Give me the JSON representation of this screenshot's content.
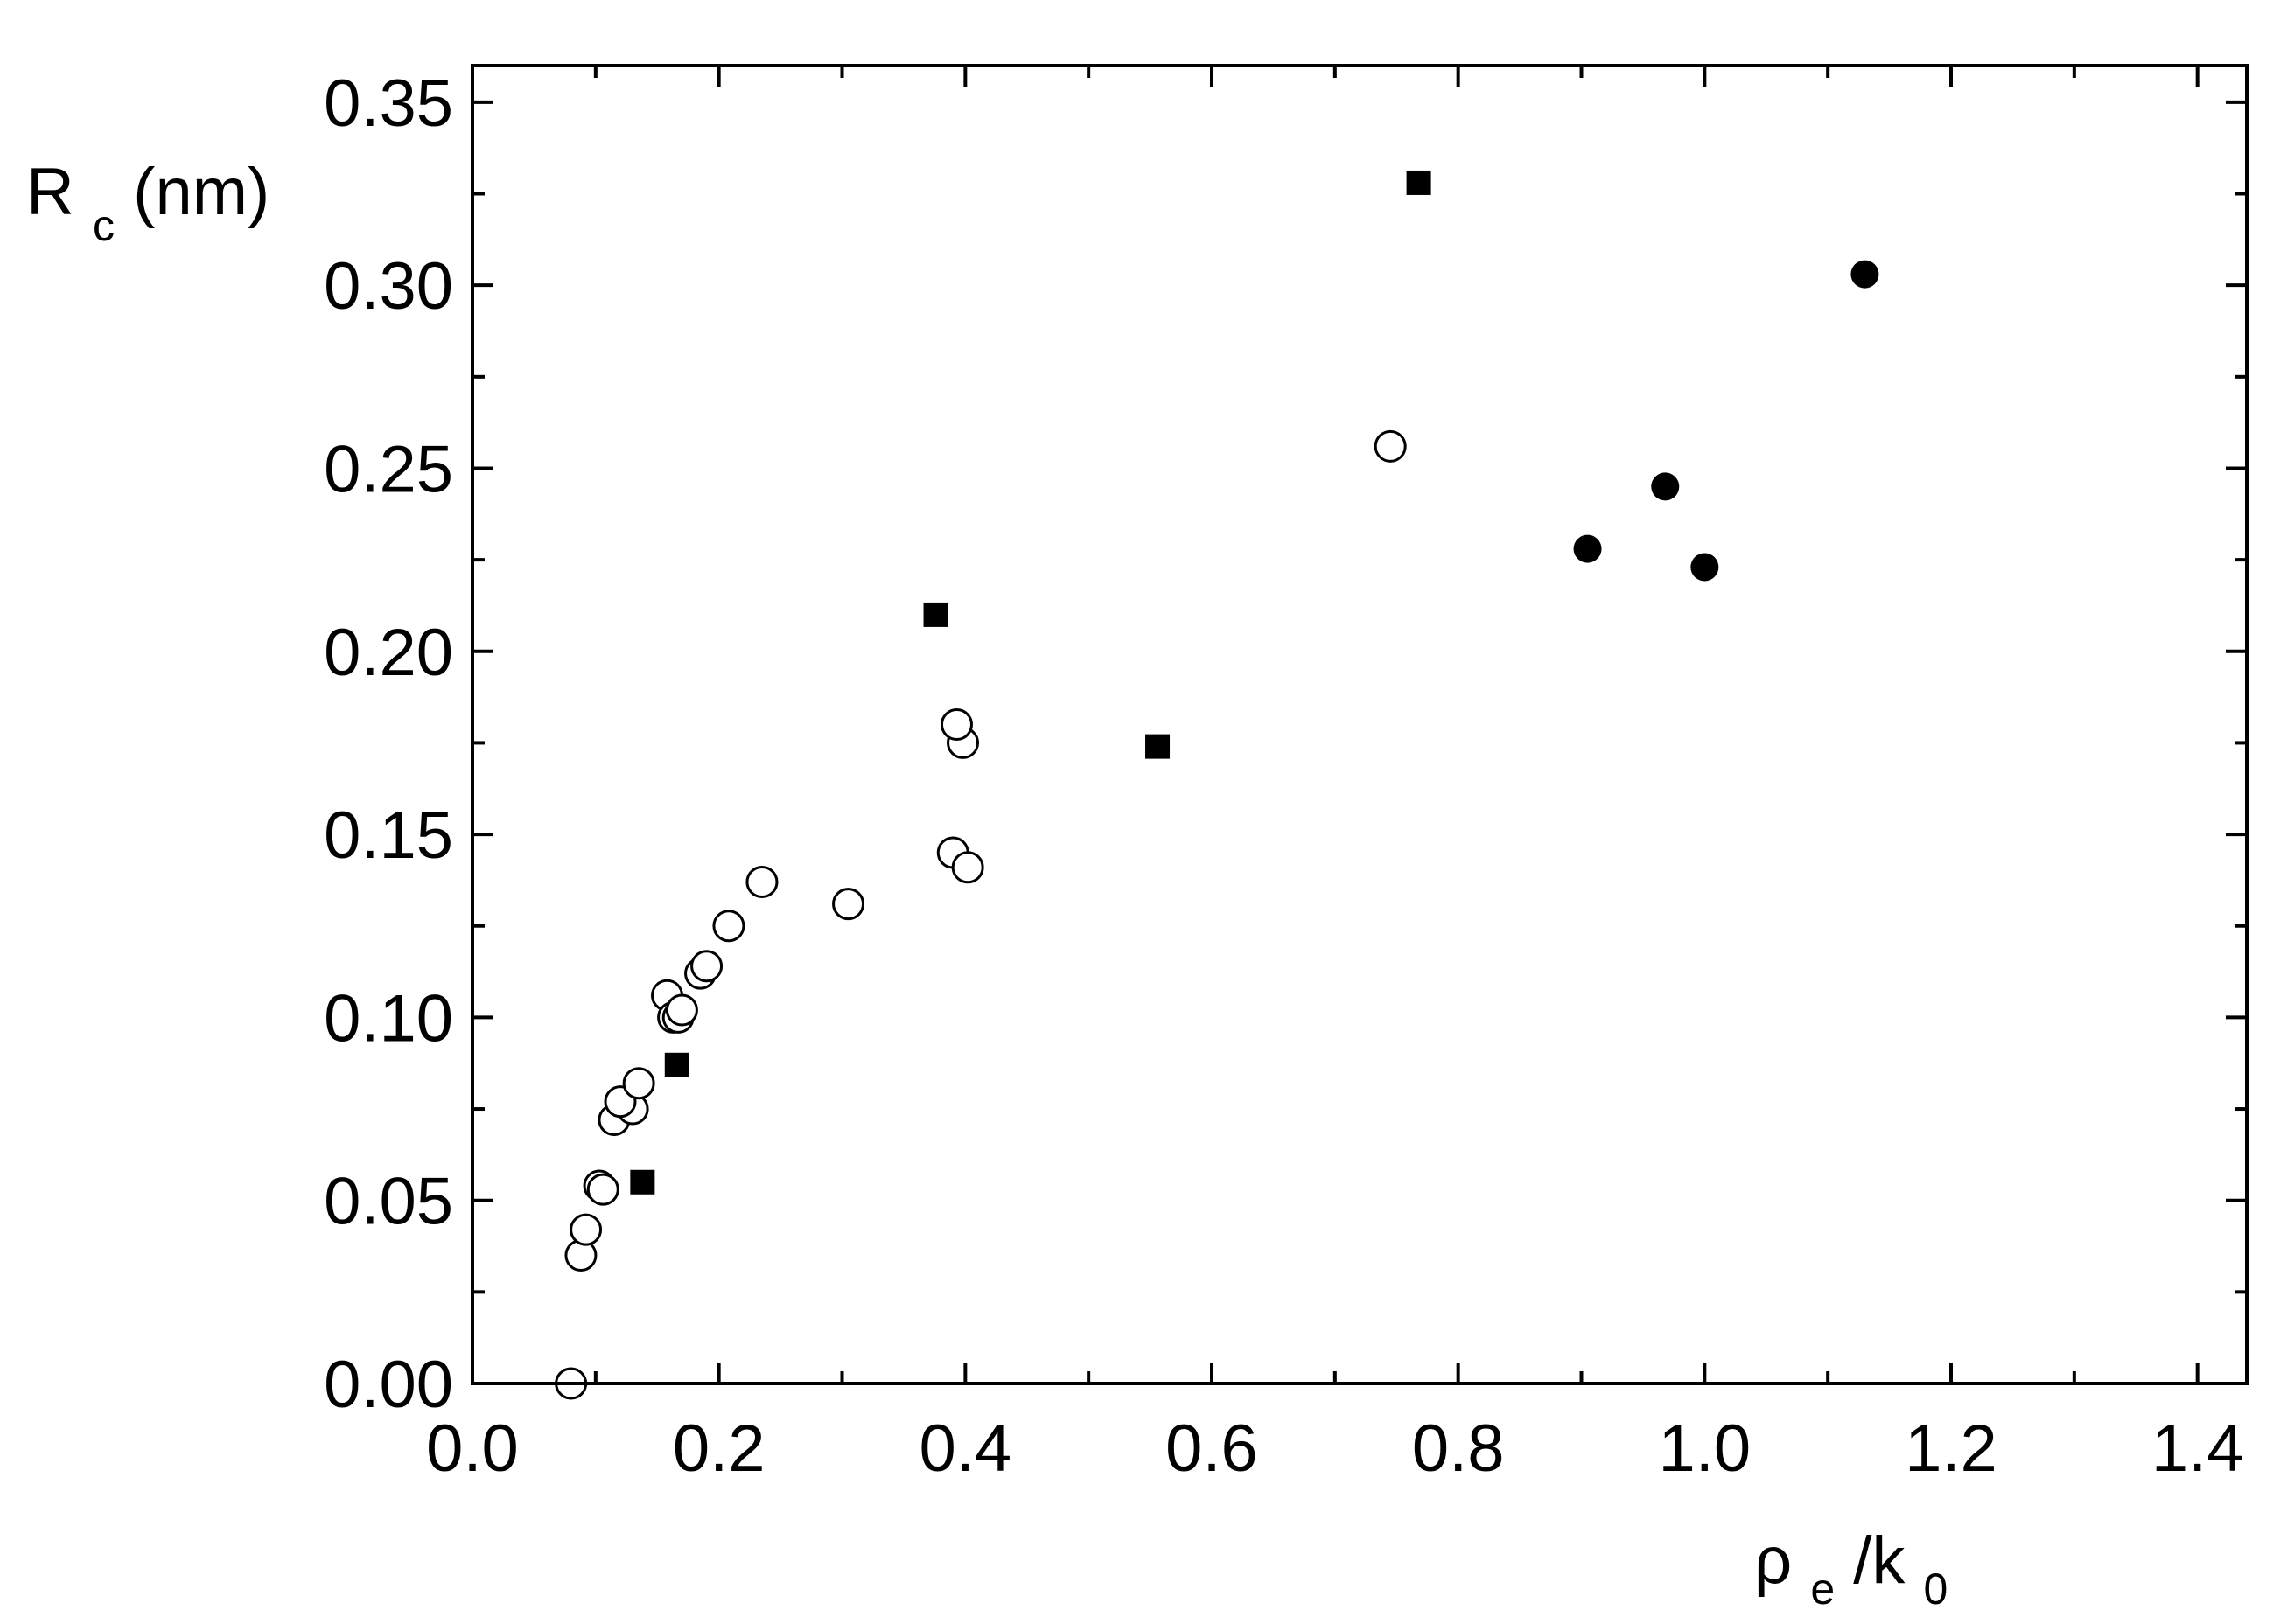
{
  "chart_data": {
    "type": "scatter",
    "xlabel": {
      "main": "ρ",
      "sub1": "e",
      "mid": "/k",
      "sub2": "0"
    },
    "ylabel": {
      "main": "R",
      "sub": "c",
      "rest": " (nm)"
    },
    "xlim": [
      0.0,
      1.44
    ],
    "ylim": [
      0.0,
      0.36
    ],
    "xticks": [
      0.0,
      0.2,
      0.4,
      0.6,
      0.8,
      1.0,
      1.2,
      1.4
    ],
    "xtick_labels": [
      "0.0",
      "0.2",
      "0.4",
      "0.6",
      "0.8",
      "1.0",
      "1.2",
      "1.4"
    ],
    "yticks": [
      0.0,
      0.05,
      0.1,
      0.15,
      0.2,
      0.25,
      0.3,
      0.35
    ],
    "ytick_labels": [
      "0.00",
      "0.05",
      "0.10",
      "0.15",
      "0.20",
      "0.25",
      "0.30",
      "0.35"
    ],
    "grid": false,
    "legend": "none",
    "series": [
      {
        "marker": "open-circle",
        "color": "#000000",
        "points": [
          [
            0.08,
            0.0
          ],
          [
            0.088,
            0.035
          ],
          [
            0.092,
            0.042
          ],
          [
            0.103,
            0.054
          ],
          [
            0.106,
            0.053
          ],
          [
            0.115,
            0.072
          ],
          [
            0.13,
            0.075
          ],
          [
            0.12,
            0.077
          ],
          [
            0.135,
            0.082
          ],
          [
            0.158,
            0.106
          ],
          [
            0.163,
            0.1
          ],
          [
            0.167,
            0.1
          ],
          [
            0.17,
            0.102
          ],
          [
            0.185,
            0.112
          ],
          [
            0.19,
            0.114
          ],
          [
            0.208,
            0.125
          ],
          [
            0.235,
            0.137
          ],
          [
            0.305,
            0.131
          ],
          [
            0.39,
            0.145
          ],
          [
            0.402,
            0.141
          ],
          [
            0.398,
            0.175
          ],
          [
            0.393,
            0.18
          ],
          [
            0.745,
            0.256
          ]
        ]
      },
      {
        "marker": "filled-square",
        "color": "#000000",
        "points": [
          [
            0.138,
            0.055
          ],
          [
            0.166,
            0.087
          ],
          [
            0.376,
            0.21
          ],
          [
            0.556,
            0.174
          ],
          [
            0.768,
            0.328
          ]
        ]
      },
      {
        "marker": "filled-circle",
        "color": "#000000",
        "points": [
          [
            0.905,
            0.228
          ],
          [
            0.968,
            0.245
          ],
          [
            1.0,
            0.223
          ],
          [
            1.13,
            0.303
          ]
        ]
      }
    ]
  }
}
